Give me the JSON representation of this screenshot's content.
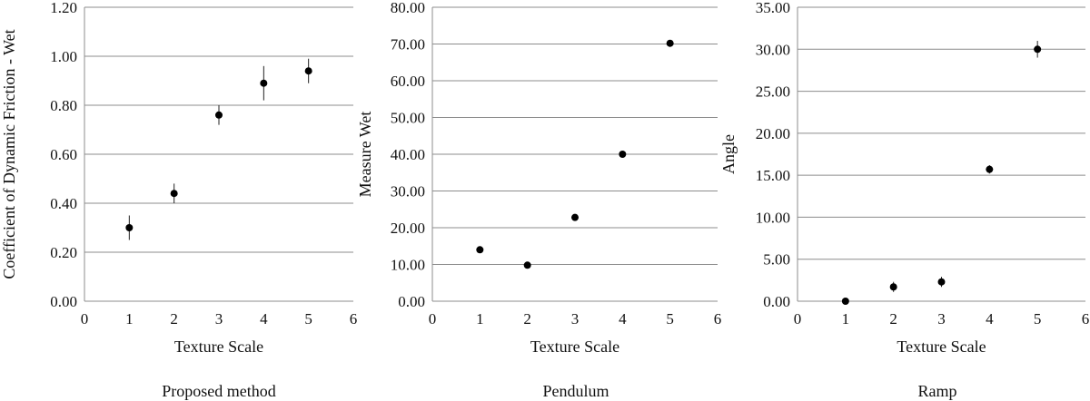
{
  "chart_data": [
    {
      "type": "scatter",
      "caption": "Proposed method",
      "xlabel": "Texture Scale",
      "ylabel": "Coefficient of  Dynamic Friction - Wet",
      "xlim": [
        0,
        6
      ],
      "ylim": [
        0,
        1.2
      ],
      "x_ticks": [
        "0",
        "1",
        "2",
        "3",
        "4",
        "5",
        "6"
      ],
      "y_ticks": [
        "0.00",
        "0.20",
        "0.40",
        "0.60",
        "0.80",
        "1.00",
        "1.20"
      ],
      "grid": "horizontal",
      "points": [
        {
          "x": 1,
          "y": 0.3,
          "err": 0.05
        },
        {
          "x": 2,
          "y": 0.44,
          "err": 0.04
        },
        {
          "x": 3,
          "y": 0.76,
          "err": 0.04
        },
        {
          "x": 4,
          "y": 0.89,
          "err": 0.07
        },
        {
          "x": 5,
          "y": 0.94,
          "err": 0.05
        }
      ]
    },
    {
      "type": "scatter",
      "caption": "Pendulum",
      "xlabel": "Texture Scale",
      "ylabel": "Measure Wet",
      "xlim": [
        0,
        6
      ],
      "ylim": [
        0,
        80
      ],
      "x_ticks": [
        "0",
        "1",
        "2",
        "3",
        "4",
        "5",
        "6"
      ],
      "y_ticks": [
        "0.00",
        "10.00",
        "20.00",
        "30.00",
        "40.00",
        "50.00",
        "60.00",
        "70.00",
        "80.00"
      ],
      "grid": "horizontal",
      "points": [
        {
          "x": 1,
          "y": 14.0,
          "err": 0
        },
        {
          "x": 2,
          "y": 9.8,
          "err": 0
        },
        {
          "x": 3,
          "y": 22.8,
          "err": 0
        },
        {
          "x": 4,
          "y": 40.0,
          "err": 0
        },
        {
          "x": 5,
          "y": 70.2,
          "err": 0
        }
      ]
    },
    {
      "type": "scatter",
      "caption": "Ramp",
      "xlabel": "Texture Scale",
      "ylabel": "Angle",
      "xlim": [
        0,
        6
      ],
      "ylim": [
        0,
        35
      ],
      "x_ticks": [
        "0",
        "1",
        "2",
        "3",
        "4",
        "5",
        "6"
      ],
      "y_ticks": [
        "0.00",
        "5.00",
        "10.00",
        "15.00",
        "20.00",
        "25.00",
        "30.00",
        "35.00"
      ],
      "grid": "horizontal",
      "points": [
        {
          "x": 1,
          "y": 0.0,
          "err": 0.2
        },
        {
          "x": 2,
          "y": 1.7,
          "err": 0.6
        },
        {
          "x": 3,
          "y": 2.3,
          "err": 0.6
        },
        {
          "x": 4,
          "y": 15.7,
          "err": 0.5
        },
        {
          "x": 5,
          "y": 30.0,
          "err": 1.0
        }
      ]
    }
  ]
}
